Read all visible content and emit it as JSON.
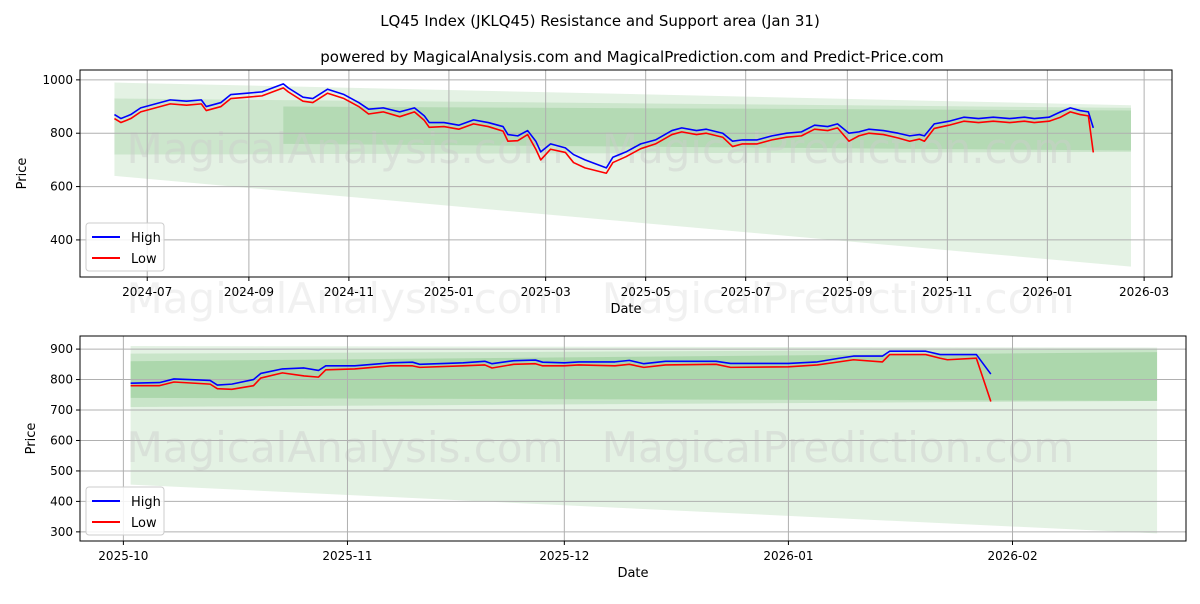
{
  "title": "LQ45 Index (JKLQ45) Resistance and Support area (Jan 31)",
  "subtitle": "powered by MagicalAnalysis.com and MagicalPrediction.com and Predict-Price.com",
  "watermark": [
    "MagicalAnalysis.com",
    "MagicalPrediction.com"
  ],
  "colors": {
    "high": "#0000ff",
    "low": "#ff0000",
    "band": "#2e9a2e",
    "grid": "#b0b0b0"
  },
  "chart_data": [
    {
      "type": "line",
      "xlabel": "Date",
      "ylabel": "Price",
      "xlim": [
        "2024-05-21",
        "2026-03-18"
      ],
      "ylim": [
        261,
        1037
      ],
      "xticks": [
        "2024-07-01",
        "2024-09-01",
        "2024-11-01",
        "2025-01-01",
        "2025-03-01",
        "2025-05-01",
        "2025-07-01",
        "2025-09-01",
        "2025-11-01",
        "2026-01-01",
        "2026-03-01"
      ],
      "xtick_labels": [
        "2024-07",
        "2024-09",
        "2024-11",
        "2025-01",
        "2025-03",
        "2025-05",
        "2025-07",
        "2025-09",
        "2025-11",
        "2026-01",
        "2026-03"
      ],
      "yticks": [
        400,
        600,
        800,
        1000
      ],
      "grid": true,
      "legend": {
        "placement": "lower-left",
        "entries": [
          "High",
          "Low"
        ]
      },
      "bands": [
        {
          "start": "2024-06-11",
          "end": "2026-02-21",
          "start_range": [
            640,
            990
          ],
          "end_range": [
            300,
            905
          ],
          "opacity": 0.13
        },
        {
          "start": "2024-06-11",
          "end": "2026-02-21",
          "start_range": [
            720,
            930
          ],
          "end_range": [
            730,
            895
          ],
          "opacity": 0.13
        },
        {
          "start": "2024-09-22",
          "end": "2026-02-21",
          "start_range": [
            760,
            900
          ],
          "end_range": [
            735,
            885
          ],
          "opacity": 0.15
        }
      ],
      "x": [
        "2024-06-11",
        "2024-06-15",
        "2024-06-21",
        "2024-06-27",
        "2024-07-06",
        "2024-07-15",
        "2024-07-25",
        "2024-08-03",
        "2024-08-06",
        "2024-08-15",
        "2024-08-21",
        "2024-08-31",
        "2024-09-09",
        "2024-09-22",
        "2024-09-25",
        "2024-10-04",
        "2024-10-10",
        "2024-10-19",
        "2024-10-29",
        "2024-11-07",
        "2024-11-13",
        "2024-11-22",
        "2024-12-02",
        "2024-12-11",
        "2024-12-17",
        "2024-12-20",
        "2024-12-29",
        "2025-01-07",
        "2025-01-16",
        "2025-01-25",
        "2025-02-03",
        "2025-02-06",
        "2025-02-12",
        "2025-02-18",
        "2025-02-23",
        "2025-02-26",
        "2025-03-04",
        "2025-03-13",
        "2025-03-18",
        "2025-03-25",
        "2025-04-07",
        "2025-04-11",
        "2025-04-19",
        "2025-04-28",
        "2025-05-07",
        "2025-05-17",
        "2025-05-23",
        "2025-06-01",
        "2025-06-07",
        "2025-06-17",
        "2025-06-23",
        "2025-06-29",
        "2025-07-08",
        "2025-07-17",
        "2025-07-26",
        "2025-08-04",
        "2025-08-12",
        "2025-08-20",
        "2025-08-26",
        "2025-09-02",
        "2025-09-08",
        "2025-09-14",
        "2025-09-23",
        "2025-10-02",
        "2025-10-09",
        "2025-10-15",
        "2025-10-18",
        "2025-10-24",
        "2025-11-02",
        "2025-11-11",
        "2025-11-20",
        "2025-11-29",
        "2025-12-09",
        "2025-12-18",
        "2025-12-24",
        "2026-01-02",
        "2026-01-09",
        "2026-01-15",
        "2026-01-21",
        "2026-01-26",
        "2026-01-29"
      ],
      "series": [
        {
          "name": "High",
          "values": [
            870,
            855,
            870,
            895,
            910,
            925,
            920,
            925,
            900,
            915,
            945,
            950,
            955,
            985,
            970,
            935,
            930,
            965,
            945,
            915,
            890,
            895,
            880,
            895,
            865,
            840,
            840,
            830,
            850,
            840,
            825,
            795,
            790,
            810,
            770,
            730,
            760,
            745,
            720,
            700,
            670,
            710,
            730,
            760,
            775,
            810,
            820,
            810,
            815,
            800,
            770,
            775,
            775,
            790,
            800,
            805,
            830,
            825,
            835,
            800,
            805,
            815,
            810,
            800,
            790,
            795,
            790,
            835,
            845,
            860,
            855,
            860,
            855,
            860,
            855,
            860,
            880,
            895,
            885,
            880,
            820
          ]
        },
        {
          "name": "Low",
          "values": [
            855,
            840,
            855,
            880,
            895,
            910,
            905,
            910,
            885,
            900,
            930,
            935,
            940,
            970,
            955,
            920,
            915,
            950,
            930,
            900,
            872,
            880,
            862,
            880,
            848,
            822,
            825,
            815,
            835,
            825,
            808,
            770,
            772,
            795,
            740,
            700,
            740,
            728,
            690,
            670,
            650,
            690,
            712,
            742,
            760,
            795,
            805,
            795,
            800,
            785,
            750,
            760,
            760,
            775,
            785,
            790,
            815,
            810,
            820,
            770,
            790,
            800,
            795,
            782,
            770,
            778,
            770,
            818,
            830,
            845,
            840,
            845,
            840,
            845,
            840,
            845,
            860,
            880,
            870,
            865,
            728
          ]
        }
      ]
    },
    {
      "type": "line",
      "xlabel": "Date",
      "ylabel": "Price",
      "xlim": [
        "2025-09-25",
        "2026-02-25"
      ],
      "ylim": [
        270,
        943
      ],
      "xticks": [
        "2025-10-01",
        "2025-11-01",
        "2025-12-01",
        "2026-01-01",
        "2026-02-01"
      ],
      "xtick_labels": [
        "2025-10",
        "2025-11",
        "2025-12",
        "2026-01",
        "2026-02"
      ],
      "yticks": [
        300,
        400,
        500,
        600,
        700,
        800,
        900
      ],
      "grid": true,
      "legend": {
        "placement": "lower-left",
        "entries": [
          "High",
          "Low"
        ]
      },
      "bands": [
        {
          "start": "2025-10-02",
          "end": "2026-02-21",
          "start_range": [
            455,
            910
          ],
          "end_range": [
            295,
            905
          ],
          "opacity": 0.13
        },
        {
          "start": "2025-10-02",
          "end": "2026-02-21",
          "start_range": [
            710,
            885
          ],
          "end_range": [
            730,
            900
          ],
          "opacity": 0.15
        },
        {
          "start": "2025-10-02",
          "end": "2026-02-21",
          "start_range": [
            740,
            860
          ],
          "end_range": [
            730,
            890
          ],
          "opacity": 0.18
        }
      ],
      "x": [
        "2025-10-02",
        "2025-10-06",
        "2025-10-08",
        "2025-10-13",
        "2025-10-14",
        "2025-10-16",
        "2025-10-19",
        "2025-10-20",
        "2025-10-23",
        "2025-10-26",
        "2025-10-28",
        "2025-10-29",
        "2025-11-02",
        "2025-11-07",
        "2025-11-10",
        "2025-11-11",
        "2025-11-17",
        "2025-11-20",
        "2025-11-21",
        "2025-11-24",
        "2025-11-27",
        "2025-11-28",
        "2025-12-01",
        "2025-12-03",
        "2025-12-08",
        "2025-12-10",
        "2025-12-12",
        "2025-12-15",
        "2025-12-22",
        "2025-12-24",
        "2026-01-01",
        "2026-01-05",
        "2026-01-08",
        "2026-01-10",
        "2026-01-14",
        "2026-01-15",
        "2026-01-20",
        "2026-01-22",
        "2026-01-23",
        "2026-01-27",
        "2026-01-29"
      ],
      "series": [
        {
          "name": "High",
          "values": [
            788,
            790,
            802,
            797,
            782,
            785,
            800,
            820,
            835,
            838,
            830,
            845,
            845,
            855,
            857,
            850,
            855,
            860,
            852,
            862,
            864,
            857,
            855,
            858,
            858,
            863,
            852,
            860,
            860,
            853,
            853,
            858,
            870,
            877,
            877,
            893,
            893,
            882,
            882,
            882,
            818
          ]
        },
        {
          "name": "Low",
          "values": [
            780,
            780,
            792,
            785,
            770,
            768,
            780,
            805,
            822,
            812,
            808,
            832,
            835,
            845,
            845,
            840,
            845,
            848,
            838,
            850,
            852,
            845,
            845,
            848,
            845,
            850,
            840,
            848,
            850,
            840,
            842,
            848,
            858,
            865,
            858,
            882,
            882,
            870,
            865,
            870,
            728
          ]
        }
      ]
    }
  ]
}
